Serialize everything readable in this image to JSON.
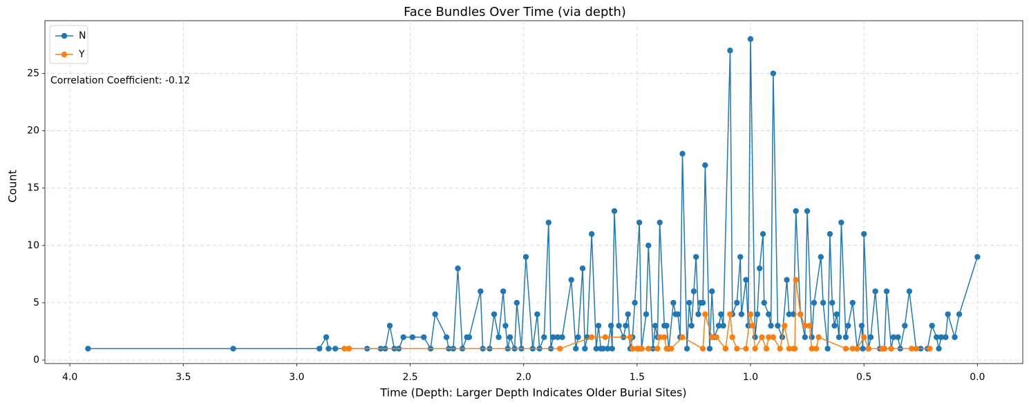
{
  "chart_data": {
    "type": "line",
    "title": "Face Bundles Over Time (via depth)",
    "x_label": "Time (Depth: Larger Depth Indicates Older Burial Sites)",
    "y_label": "Count",
    "annotation": "Correlation Coefficient: -0.12",
    "xlim": [
      4.11,
      -0.2
    ],
    "ylim": [
      -0.3,
      29.6
    ],
    "xticks": [
      {
        "value": 4,
        "label": "4.0"
      },
      3.5,
      {
        "value": 3,
        "label": "3.0"
      },
      2.5,
      {
        "value": 2,
        "label": "2.0"
      },
      1.5,
      {
        "value": 1,
        "label": "1.0"
      },
      0.5,
      {
        "value": 0,
        "label": "0.0"
      }
    ],
    "yticks": [
      0,
      5,
      10,
      15,
      20,
      25
    ],
    "grid": true,
    "legend": "upper left",
    "series": [
      {
        "name": "N",
        "color": "#1f77b4",
        "x": [
          3.92,
          3.28,
          2.9,
          2.87,
          2.86,
          2.83,
          2.77,
          2.69,
          2.63,
          2.61,
          2.59,
          2.57,
          2.55,
          2.53,
          2.49,
          2.44,
          2.41,
          2.39,
          2.34,
          2.33,
          2.31,
          2.29,
          2.27,
          2.25,
          2.24,
          2.19,
          2.18,
          2.15,
          2.13,
          2.11,
          2.09,
          2.08,
          2.07,
          2.06,
          2.04,
          2.03,
          2.01,
          1.99,
          1.96,
          1.94,
          1.93,
          1.91,
          1.89,
          1.88,
          1.87,
          1.85,
          1.83,
          1.79,
          1.77,
          1.76,
          1.74,
          1.73,
          1.72,
          1.7,
          1.68,
          1.67,
          1.66,
          1.65,
          1.63,
          1.615,
          1.61,
          1.6,
          1.58,
          1.56,
          1.55,
          1.54,
          1.53,
          1.52,
          1.51,
          1.49,
          1.48,
          1.46,
          1.45,
          1.43,
          1.42,
          1.41,
          1.4,
          1.38,
          1.37,
          1.36,
          1.34,
          1.33,
          1.32,
          1.31,
          1.3,
          1.28,
          1.27,
          1.26,
          1.25,
          1.24,
          1.23,
          1.22,
          1.21,
          1.2,
          1.18,
          1.17,
          1.16,
          1.14,
          1.13,
          1.12,
          1.09,
          1.08,
          1.06,
          1.045,
          1.04,
          1.02,
          1.01,
          1.0,
          0.98,
          0.97,
          0.96,
          0.945,
          0.94,
          0.92,
          0.91,
          0.9,
          0.88,
          0.86,
          0.84,
          0.83,
          0.81,
          0.8,
          0.78,
          0.76,
          0.75,
          0.73,
          0.72,
          0.69,
          0.68,
          0.66,
          0.65,
          0.64,
          0.63,
          0.62,
          0.61,
          0.6,
          0.58,
          0.57,
          0.55,
          0.53,
          0.51,
          0.505,
          0.5,
          0.48,
          0.47,
          0.45,
          0.43,
          0.41,
          0.4,
          0.38,
          0.37,
          0.35,
          0.34,
          0.32,
          0.3,
          0.27,
          0.25,
          0.22,
          0.2,
          0.18,
          0.17,
          0.16,
          0.14,
          0.13,
          0.1,
          0.08,
          0.0
        ],
        "values": [
          1,
          1,
          1,
          2,
          1,
          1,
          1,
          1,
          1,
          1,
          3,
          1,
          1,
          2,
          2,
          2,
          1,
          4,
          2,
          1,
          1,
          8,
          1,
          2,
          2,
          6,
          1,
          1,
          4,
          2,
          6,
          3,
          1,
          2,
          1,
          5,
          1,
          9,
          1,
          4,
          1,
          2,
          12,
          1,
          2,
          2,
          2,
          7,
          1,
          2,
          8,
          1,
          2,
          11,
          1,
          3,
          1,
          1,
          1,
          3,
          1,
          13,
          3,
          2,
          3,
          4,
          1,
          2,
          5,
          12,
          1,
          4,
          10,
          1,
          3,
          2,
          12,
          3,
          3,
          1,
          5,
          4,
          4,
          2,
          18,
          1,
          5,
          3,
          6,
          9,
          4,
          5,
          5,
          17,
          1,
          6,
          2,
          3,
          4,
          3,
          27,
          4,
          5,
          9,
          4,
          7,
          3,
          28,
          2,
          4,
          8,
          11,
          5,
          4,
          3,
          25,
          3,
          2,
          7,
          4,
          4,
          13,
          4,
          2,
          13,
          2,
          5,
          9,
          5,
          1,
          11,
          5,
          3,
          4,
          2,
          12,
          2,
          3,
          5,
          1,
          3,
          1,
          11,
          1,
          2,
          6,
          1,
          1,
          6,
          1,
          2,
          2,
          1,
          3,
          6,
          1,
          1,
          1,
          3,
          2,
          1,
          2,
          2,
          4,
          2,
          4,
          9
        ]
      },
      {
        "name": "Y",
        "color": "#ff7f0e",
        "x": [
          2.79,
          2.77,
          1.84,
          1.7,
          1.64,
          1.53,
          1.52,
          1.5,
          1.49,
          1.48,
          1.45,
          1.41,
          1.4,
          1.38,
          1.37,
          1.35,
          1.3,
          1.21,
          1.2,
          1.17,
          1.15,
          1.11,
          1.09,
          1.08,
          1.06,
          1.02,
          1.0,
          0.99,
          0.98,
          0.95,
          0.93,
          0.92,
          0.9,
          0.87,
          0.85,
          0.83,
          0.81,
          0.805,
          0.8,
          0.78,
          0.76,
          0.74,
          0.73,
          0.71,
          0.7,
          0.58,
          0.55,
          0.53,
          0.5,
          0.48,
          0.42,
          0.41,
          0.38,
          0.29,
          0.27,
          0.21
        ],
        "values": [
          1,
          1,
          1,
          2,
          2,
          2,
          1,
          1,
          1,
          1,
          1,
          1,
          2,
          2,
          1,
          1,
          2,
          1,
          4,
          2,
          2,
          1,
          4,
          2,
          1,
          1,
          4,
          3,
          1,
          2,
          1,
          2,
          2,
          1,
          3,
          1,
          1,
          1,
          7,
          4,
          3,
          3,
          1,
          1,
          2,
          1,
          1,
          1,
          2,
          1,
          1,
          1,
          1,
          1,
          1,
          1
        ]
      }
    ]
  }
}
